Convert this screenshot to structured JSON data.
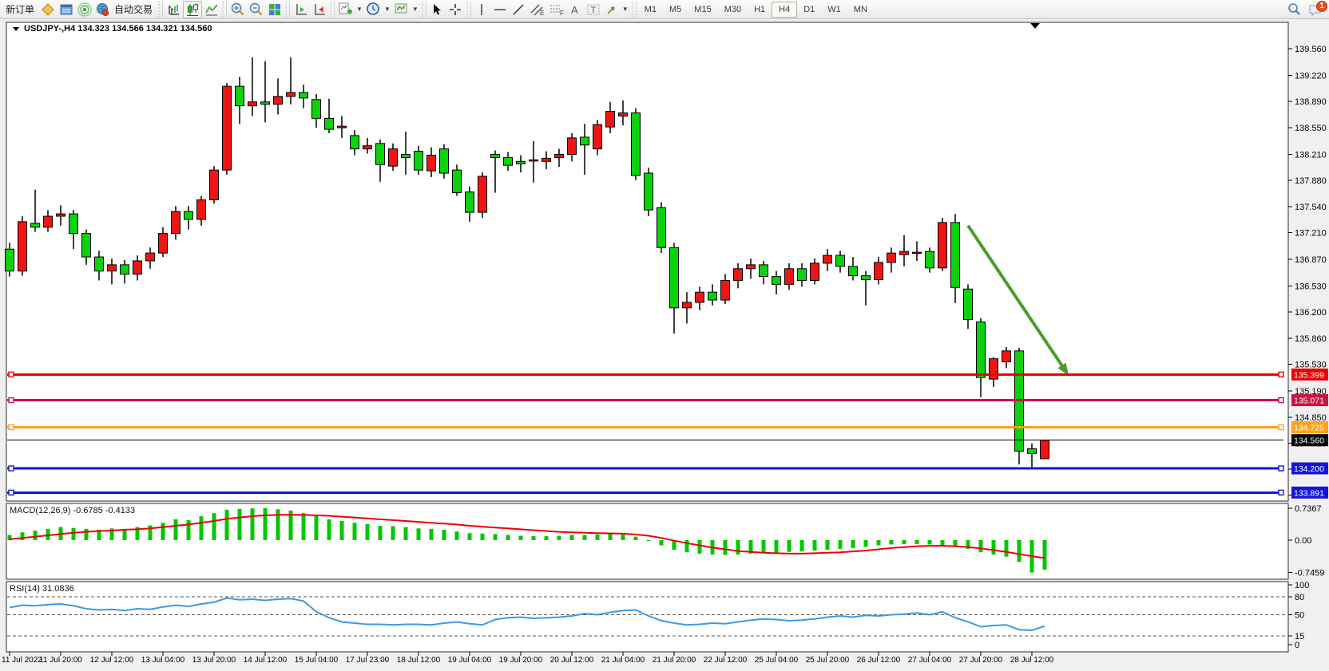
{
  "toolbar": {
    "new_order_label": "新订单",
    "autotrading_label": "自动交易",
    "timeframes": [
      "M1",
      "M5",
      "M15",
      "M30",
      "H1",
      "H4",
      "D1",
      "W1",
      "MN"
    ],
    "active_timeframe": "H4",
    "chat_badge": "1"
  },
  "chart_data": {
    "type": "candlestick",
    "symbol_title": "USDJPY-,H4",
    "ohlc_display": "134.323 134.566 134.321 134.560",
    "up_color": "#f01414",
    "down_color": "#0bd20b",
    "candle_outline": "#000000",
    "price_axis_ticks": [
      139.56,
      139.22,
      138.89,
      138.55,
      138.21,
      137.88,
      137.54,
      137.21,
      136.87,
      136.53,
      136.2,
      135.86,
      135.53,
      135.19,
      134.85,
      134.52,
      134.19,
      133.86
    ],
    "x_labels": [
      "11 Jul 2022",
      "11 Jul 20:00",
      "12 Jul 12:00",
      "13 Jul 04:00",
      "13 Jul 20:00",
      "14 Jul 12:00",
      "15 Jul 04:00",
      "17 Jul 23:00",
      "18 Jul 12:00",
      "19 Jul 04:00",
      "19 Jul 20:00",
      "20 Jul 12:00",
      "21 Jul 04:00",
      "21 Jul 20:00",
      "22 Jul 12:00",
      "25 Jul 04:00",
      "25 Jul 20:00",
      "26 Jul 12:00",
      "27 Jul 04:00",
      "27 Jul 20:00",
      "28 Jul 12:00"
    ],
    "label_every_n_candles": 4,
    "candles": [
      [
        137.0,
        137.08,
        136.65,
        136.72
      ],
      [
        136.72,
        137.42,
        136.66,
        137.35
      ],
      [
        137.33,
        137.76,
        137.22,
        137.28
      ],
      [
        137.28,
        137.5,
        137.22,
        137.42
      ],
      [
        137.42,
        137.56,
        137.3,
        137.45
      ],
      [
        137.45,
        137.5,
        137.0,
        137.2
      ],
      [
        137.2,
        137.25,
        136.8,
        136.9
      ],
      [
        136.9,
        136.98,
        136.6,
        136.72
      ],
      [
        136.72,
        136.88,
        136.55,
        136.8
      ],
      [
        136.8,
        136.86,
        136.56,
        136.68
      ],
      [
        136.68,
        136.92,
        136.6,
        136.85
      ],
      [
        136.85,
        137.02,
        136.75,
        136.95
      ],
      [
        136.95,
        137.28,
        136.9,
        137.2
      ],
      [
        137.2,
        137.55,
        137.12,
        137.48
      ],
      [
        137.48,
        137.55,
        137.25,
        137.38
      ],
      [
        137.38,
        137.68,
        137.3,
        137.63
      ],
      [
        137.63,
        138.06,
        137.58,
        138.01
      ],
      [
        138.01,
        139.12,
        137.95,
        139.08
      ],
      [
        139.08,
        139.2,
        138.6,
        138.83
      ],
      [
        138.83,
        139.45,
        138.7,
        138.88
      ],
      [
        138.88,
        139.4,
        138.62,
        138.85
      ],
      [
        138.85,
        139.18,
        138.72,
        138.95
      ],
      [
        138.95,
        139.45,
        138.85,
        139.0
      ],
      [
        139.0,
        139.1,
        138.8,
        138.93
      ],
      [
        138.91,
        138.98,
        138.55,
        138.67
      ],
      [
        138.67,
        138.92,
        138.48,
        138.53
      ],
      [
        138.55,
        138.7,
        138.42,
        138.57
      ],
      [
        138.45,
        138.52,
        138.2,
        138.28
      ],
      [
        138.28,
        138.42,
        138.22,
        138.32
      ],
      [
        138.35,
        138.4,
        137.86,
        138.08
      ],
      [
        138.06,
        138.35,
        138.0,
        138.28
      ],
      [
        138.21,
        138.5,
        137.95,
        138.17
      ],
      [
        138.25,
        138.32,
        137.95,
        138.01
      ],
      [
        138.0,
        138.3,
        137.92,
        138.2
      ],
      [
        138.28,
        138.34,
        137.9,
        137.97
      ],
      [
        138.01,
        138.08,
        137.68,
        137.72
      ],
      [
        137.73,
        137.8,
        137.35,
        137.47
      ],
      [
        137.47,
        137.98,
        137.4,
        137.93
      ],
      [
        138.21,
        138.26,
        137.72,
        138.17
      ],
      [
        138.17,
        138.24,
        138.0,
        138.07
      ],
      [
        138.12,
        138.2,
        137.98,
        138.09
      ],
      [
        138.13,
        138.38,
        137.85,
        138.14
      ],
      [
        138.12,
        138.25,
        138.02,
        138.16
      ],
      [
        138.17,
        138.28,
        138.05,
        138.21
      ],
      [
        138.21,
        138.48,
        138.12,
        138.42
      ],
      [
        138.43,
        138.6,
        137.95,
        138.33
      ],
      [
        138.28,
        138.65,
        138.2,
        138.59
      ],
      [
        138.56,
        138.88,
        138.48,
        138.76
      ],
      [
        138.7,
        138.9,
        138.58,
        138.74
      ],
      [
        138.74,
        138.8,
        137.88,
        137.94
      ],
      [
        137.97,
        138.04,
        137.42,
        137.5
      ],
      [
        137.53,
        137.6,
        136.95,
        137.02
      ],
      [
        137.02,
        137.08,
        135.92,
        136.25
      ],
      [
        136.25,
        136.45,
        136.05,
        136.32
      ],
      [
        136.32,
        136.52,
        136.22,
        136.45
      ],
      [
        136.45,
        136.55,
        136.28,
        136.35
      ],
      [
        136.35,
        136.68,
        136.3,
        136.6
      ],
      [
        136.6,
        136.82,
        136.5,
        136.75
      ],
      [
        136.75,
        136.88,
        136.62,
        136.8
      ],
      [
        136.8,
        136.85,
        136.55,
        136.65
      ],
      [
        136.65,
        136.72,
        136.42,
        136.55
      ],
      [
        136.55,
        136.82,
        136.48,
        136.75
      ],
      [
        136.75,
        136.82,
        136.52,
        136.6
      ],
      [
        136.6,
        136.88,
        136.55,
        136.82
      ],
      [
        136.82,
        137.0,
        136.72,
        136.92
      ],
      [
        136.92,
        136.98,
        136.7,
        136.78
      ],
      [
        136.78,
        136.9,
        136.6,
        136.66
      ],
      [
        136.66,
        136.72,
        136.28,
        136.61
      ],
      [
        136.61,
        136.9,
        136.55,
        136.83
      ],
      [
        136.83,
        137.02,
        136.7,
        136.95
      ],
      [
        136.93,
        137.18,
        136.78,
        136.97
      ],
      [
        136.96,
        137.1,
        136.85,
        136.96
      ],
      [
        136.97,
        137.02,
        136.7,
        136.76
      ],
      [
        136.76,
        137.4,
        136.72,
        137.34
      ],
      [
        137.34,
        137.45,
        136.31,
        136.51
      ],
      [
        136.49,
        136.55,
        135.98,
        136.1
      ],
      [
        136.07,
        136.12,
        135.11,
        135.36
      ],
      [
        135.34,
        135.62,
        135.24,
        135.6
      ],
      [
        135.56,
        135.75,
        135.48,
        135.7
      ],
      [
        135.7,
        135.74,
        134.25,
        134.42
      ],
      [
        134.45,
        134.52,
        134.21,
        134.39
      ],
      [
        134.323,
        134.566,
        134.321,
        134.56
      ]
    ],
    "hlines": [
      {
        "price": 135.399,
        "label": "135.399",
        "color": "#ee0000",
        "width": 3,
        "end_squares": true
      },
      {
        "price": 135.071,
        "label": "135.071",
        "color": "#cc1144",
        "width": 3,
        "end_squares": true
      },
      {
        "price": 134.725,
        "label": "134.725",
        "color": "#ffa21c",
        "width": 3,
        "end_squares": true
      },
      {
        "price": 134.56,
        "label": "134.560",
        "color": "#000000",
        "width": 1,
        "end_squares": false
      },
      {
        "price": 134.2,
        "label": "134.200",
        "color": "#1414dd",
        "width": 3,
        "end_squares": true
      },
      {
        "price": 133.891,
        "label": "133.891",
        "color": "#1414dd",
        "width": 3,
        "end_squares": true
      }
    ],
    "arrow": {
      "from_index": 75,
      "from_price": 137.3,
      "to_index": 82.9,
      "to_price": 135.38,
      "color": "#4f9a2d"
    },
    "shift_marker_index": 80.25,
    "macd": {
      "label_name": "MACD(12,26,9)",
      "main_value": "-0.6785",
      "signal_value": "-0.4133",
      "scale_labels": [
        "0.7367",
        "0.00",
        "-0.7459"
      ],
      "scale_values": [
        0.7367,
        0,
        -0.7459
      ],
      "hist_color": "#00c800",
      "signal_color": "#f00000",
      "histogram": [
        0.12,
        0.18,
        0.22,
        0.26,
        0.3,
        0.28,
        0.26,
        0.24,
        0.27,
        0.25,
        0.3,
        0.34,
        0.4,
        0.48,
        0.46,
        0.55,
        0.62,
        0.7,
        0.72,
        0.73,
        0.7367,
        0.71,
        0.68,
        0.62,
        0.55,
        0.48,
        0.44,
        0.4,
        0.37,
        0.33,
        0.32,
        0.3,
        0.27,
        0.26,
        0.24,
        0.2,
        0.16,
        0.15,
        0.14,
        0.12,
        0.1,
        0.09,
        0.09,
        0.1,
        0.12,
        0.12,
        0.13,
        0.14,
        0.13,
        0.08,
        -0.02,
        -0.12,
        -0.22,
        -0.28,
        -0.31,
        -0.33,
        -0.34,
        -0.33,
        -0.31,
        -0.3,
        -0.29,
        -0.27,
        -0.26,
        -0.24,
        -0.22,
        -0.2,
        -0.18,
        -0.15,
        -0.12,
        -0.1,
        -0.09,
        -0.09,
        -0.1,
        -0.12,
        -0.15,
        -0.2,
        -0.28,
        -0.33,
        -0.38,
        -0.5,
        -0.7459,
        -0.6785
      ],
      "signal": [
        0.02,
        0.05,
        0.08,
        0.11,
        0.14,
        0.17,
        0.19,
        0.21,
        0.22,
        0.24,
        0.25,
        0.27,
        0.3,
        0.33,
        0.36,
        0.4,
        0.44,
        0.49,
        0.52,
        0.55,
        0.57,
        0.58,
        0.585,
        0.58,
        0.57,
        0.56,
        0.54,
        0.52,
        0.5,
        0.48,
        0.46,
        0.44,
        0.42,
        0.4,
        0.38,
        0.36,
        0.33,
        0.31,
        0.29,
        0.27,
        0.25,
        0.23,
        0.21,
        0.19,
        0.18,
        0.17,
        0.16,
        0.155,
        0.15,
        0.13,
        0.1,
        0.05,
        -0.01,
        -0.07,
        -0.12,
        -0.17,
        -0.21,
        -0.25,
        -0.27,
        -0.29,
        -0.3,
        -0.31,
        -0.31,
        -0.3,
        -0.29,
        -0.28,
        -0.26,
        -0.24,
        -0.21,
        -0.18,
        -0.16,
        -0.14,
        -0.13,
        -0.13,
        -0.14,
        -0.16,
        -0.19,
        -0.23,
        -0.27,
        -0.32,
        -0.37,
        -0.4133
      ]
    },
    "rsi": {
      "label_name": "RSI(14)",
      "value": "31.0836",
      "color": "#3d9ae1",
      "scale_labels": [
        "100",
        "80",
        "50",
        "15",
        "0"
      ],
      "scale_values": [
        100,
        80,
        50,
        15,
        0
      ],
      "dashed_levels": [
        80,
        50,
        15
      ],
      "values": [
        62,
        66,
        65,
        67,
        68,
        65,
        60,
        58,
        59,
        57,
        60,
        59,
        63,
        66,
        64,
        68,
        71,
        78,
        75,
        76,
        74,
        76,
        77,
        73,
        55,
        45,
        38,
        36,
        34,
        34,
        33,
        34,
        34,
        33,
        36,
        38,
        35,
        33,
        42,
        45,
        46,
        44,
        45,
        46,
        48,
        52,
        50,
        54,
        57,
        58,
        48,
        40,
        36,
        33,
        34,
        36,
        35,
        38,
        41,
        43,
        42,
        40,
        41,
        43,
        46,
        48,
        46,
        49,
        48,
        50,
        51,
        53,
        50,
        55,
        45,
        38,
        30,
        32,
        33,
        25,
        24,
        31.0836
      ]
    }
  }
}
